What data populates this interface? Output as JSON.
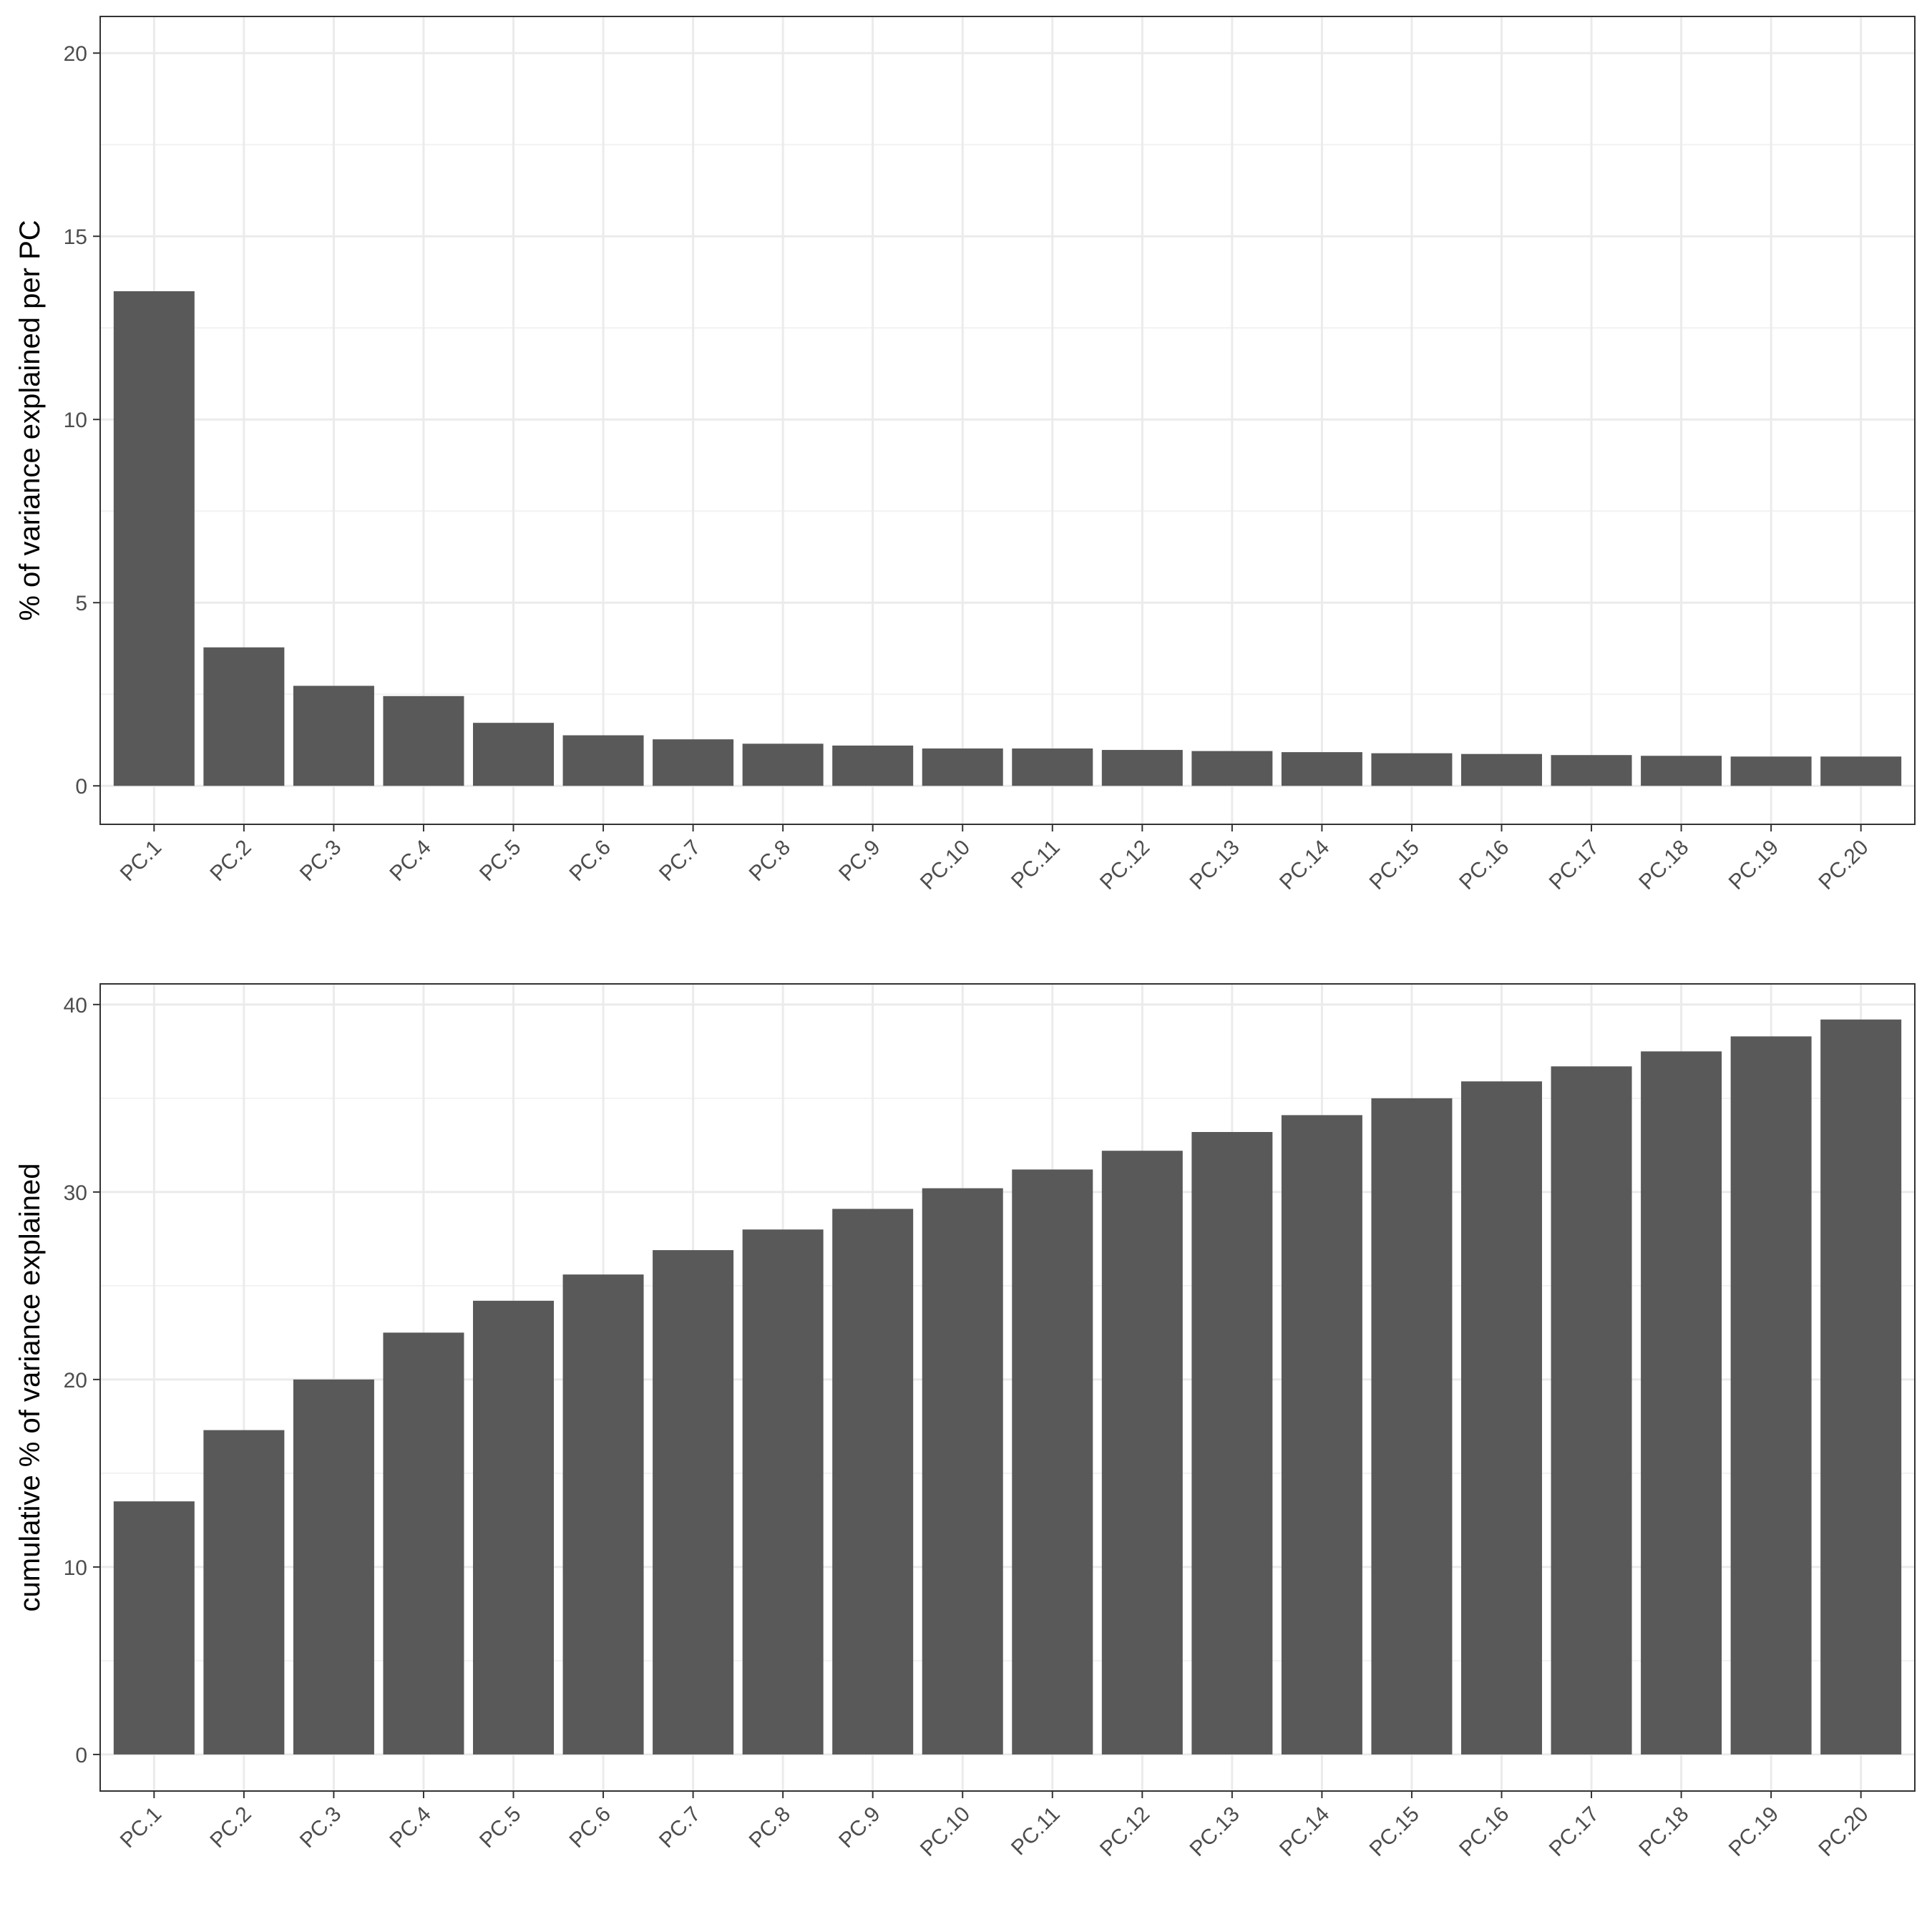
{
  "chart_data": [
    {
      "type": "bar",
      "title": "",
      "xlabel": "",
      "ylabel": "% of variance explained per PC",
      "categories": [
        "PC.1",
        "PC.2",
        "PC.3",
        "PC.4",
        "PC.5",
        "PC.6",
        "PC.7",
        "PC.8",
        "PC.9",
        "PC.10",
        "PC.11",
        "PC.12",
        "PC.13",
        "PC.14",
        "PC.15",
        "PC.16",
        "PC.17",
        "PC.18",
        "PC.19",
        "PC.20"
      ],
      "values": [
        13.5,
        3.78,
        2.73,
        2.45,
        1.72,
        1.38,
        1.27,
        1.15,
        1.1,
        1.02,
        1.02,
        0.98,
        0.95,
        0.92,
        0.89,
        0.87,
        0.84,
        0.82,
        0.8,
        0.8
      ],
      "ylim": [
        -1.05,
        21.0
      ],
      "yticks": [
        0,
        5,
        10,
        15,
        20
      ],
      "ytick_labels": [
        "0",
        "5",
        "10",
        "15",
        "20"
      ],
      "grid": true,
      "bar_color": "#595959"
    },
    {
      "type": "bar",
      "title": "",
      "xlabel": "",
      "ylabel": "cumulative % of variance explained",
      "categories": [
        "PC.1",
        "PC.2",
        "PC.3",
        "PC.4",
        "PC.5",
        "PC.6",
        "PC.7",
        "PC.8",
        "PC.9",
        "PC.10",
        "PC.11",
        "PC.12",
        "PC.13",
        "PC.14",
        "PC.15",
        "PC.16",
        "PC.17",
        "PC.18",
        "PC.19",
        "PC.20"
      ],
      "values": [
        13.5,
        17.3,
        20.0,
        22.5,
        24.2,
        25.6,
        26.9,
        28.0,
        29.1,
        30.2,
        31.2,
        32.2,
        33.2,
        34.1,
        35.0,
        35.9,
        36.7,
        37.5,
        38.3,
        39.2
      ],
      "ylim": [
        -1.95,
        41.1
      ],
      "yticks": [
        0,
        10,
        20,
        30,
        40
      ],
      "ytick_labels": [
        "0",
        "10",
        "20",
        "30",
        "40"
      ],
      "grid": true,
      "bar_color": "#595959"
    }
  ]
}
